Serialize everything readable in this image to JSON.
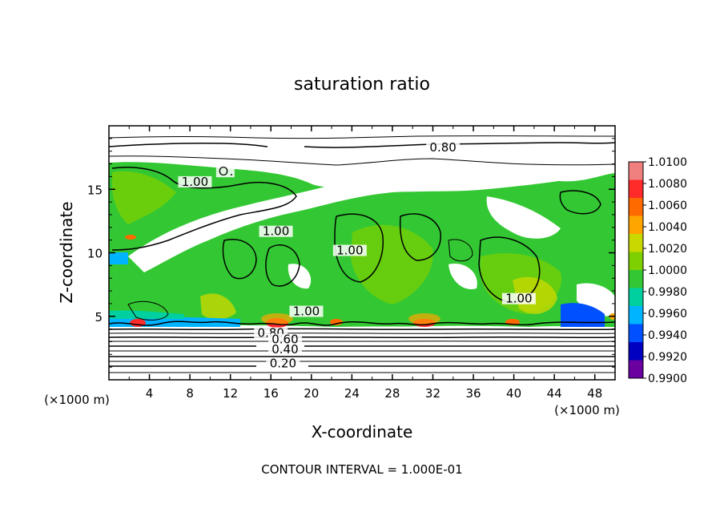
{
  "chart_data": {
    "type": "heatmap",
    "title": "saturation ratio",
    "xlabel": "X-coordinate",
    "ylabel": "Z-coordinate",
    "x_unit_label": "(×1000 m)",
    "y_unit_label": "(×1000 m)",
    "xlim": [
      0,
      50
    ],
    "ylim": [
      0,
      20
    ],
    "x_ticks": [
      "4",
      "8",
      "12",
      "16",
      "20",
      "24",
      "28",
      "32",
      "36",
      "40",
      "44",
      "48"
    ],
    "x_tick_values": [
      4,
      8,
      12,
      16,
      20,
      24,
      28,
      32,
      36,
      40,
      44,
      48
    ],
    "y_ticks": [
      "5",
      "10",
      "15"
    ],
    "y_tick_values": [
      5,
      10,
      15
    ],
    "grid": false,
    "colorbar": {
      "placement": "right",
      "range": [
        0.99,
        1.01
      ],
      "labels": [
        "1.0100",
        "1.0080",
        "1.0060",
        "1.0040",
        "1.0020",
        "1.0000",
        "0.9980",
        "0.9960",
        "0.9940",
        "0.9920",
        "0.9900"
      ],
      "colors": [
        "#f08080",
        "#ff2a2a",
        "#ff6a00",
        "#ffa500",
        "#c8d800",
        "#7ed000",
        "#33c833",
        "#00d0a0",
        "#00b4ff",
        "#0050ff",
        "#0000c0",
        "#6a00a0"
      ]
    },
    "contour_labels": [
      {
        "text": "0.80",
        "x": 33,
        "z": 18.1
      },
      {
        "text": "1.00",
        "x": 8.5,
        "z": 15.4
      },
      {
        "text": "Ｏ.",
        "x": 11.5,
        "z": 16.2
      },
      {
        "text": "1.00",
        "x": 16.5,
        "z": 11.5
      },
      {
        "text": "1.00",
        "x": 23.8,
        "z": 10.0
      },
      {
        "text": "1.00",
        "x": 40.5,
        "z": 6.2
      },
      {
        "text": "1.00",
        "x": 19.5,
        "z": 5.2
      },
      {
        "text": "0.80",
        "x": 16,
        "z": 3.5
      },
      {
        "text": "0.60",
        "x": 17.4,
        "z": 3.0
      },
      {
        "text": "0.40",
        "x": 17.4,
        "z": 2.2
      },
      {
        "text": "0.20",
        "x": 17.2,
        "z": 1.1
      }
    ],
    "footer": "CONTOUR INTERVAL = 1.000E-01"
  }
}
